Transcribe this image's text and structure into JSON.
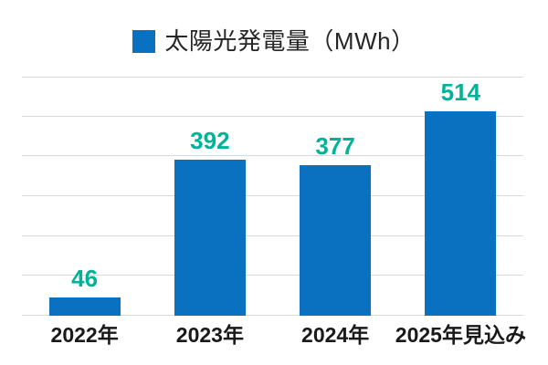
{
  "legend": {
    "label": "太陽光発電量（MWh）",
    "swatch_color": "#0a70c0"
  },
  "chart_data": {
    "type": "bar",
    "title": "太陽光発電量（MWh）",
    "categories": [
      "2022年",
      "2023年",
      "2024年",
      "2025年見込み"
    ],
    "values": [
      46,
      392,
      377,
      514
    ],
    "value_labels": [
      "46",
      "392",
      "377",
      "514"
    ],
    "xlabel": "",
    "ylabel": "",
    "ylim": [
      0,
      600
    ],
    "gridline_step": 100,
    "grid": true,
    "legend_position": "top",
    "colors": {
      "bar": "#0a70c0",
      "value_label": "#00b398",
      "gridline": "#d9d9d9",
      "axis_label": "#1a1a1a",
      "legend_text": "#262626"
    }
  }
}
